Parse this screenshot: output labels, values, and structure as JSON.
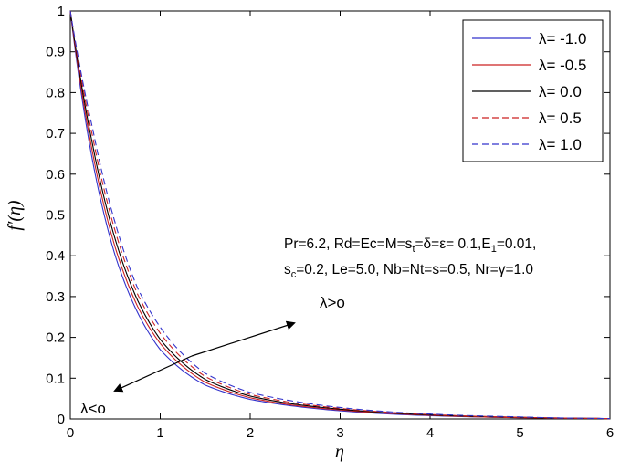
{
  "chart_data": {
    "type": "line",
    "xlabel": "η",
    "ylabel": "f′(η)",
    "xlim": [
      0,
      6
    ],
    "ylim": [
      0,
      1
    ],
    "x_ticks": [
      "0",
      "1",
      "2",
      "3",
      "4",
      "5",
      "6"
    ],
    "y_ticks": [
      "0",
      "0.1",
      "0.2",
      "0.3",
      "0.4",
      "0.5",
      "0.6",
      "0.7",
      "0.8",
      "0.9",
      "1"
    ],
    "grid": false,
    "legend_position": "top-right",
    "series": [
      {
        "name": "λ= -1.0",
        "color": "#3333cc",
        "dash": "solid",
        "x": [
          0,
          0.25,
          0.5,
          0.75,
          1,
          1.5,
          2,
          2.5,
          3,
          4,
          5,
          6
        ],
        "y": [
          1,
          0.63,
          0.4,
          0.26,
          0.17,
          0.083,
          0.048,
          0.031,
          0.02,
          0.008,
          0.003,
          0.001
        ]
      },
      {
        "name": "λ= -0.5",
        "color": "#cc2222",
        "dash": "solid",
        "x": [
          0,
          0.25,
          0.5,
          0.75,
          1,
          1.5,
          2,
          2.5,
          3,
          4,
          5,
          6
        ],
        "y": [
          1,
          0.65,
          0.42,
          0.275,
          0.185,
          0.09,
          0.052,
          0.033,
          0.022,
          0.009,
          0.003,
          0.001
        ]
      },
      {
        "name": "λ= 0.0",
        "color": "#000000",
        "dash": "solid",
        "x": [
          0,
          0.25,
          0.5,
          0.75,
          1,
          1.5,
          2,
          2.5,
          3,
          4,
          5,
          6
        ],
        "y": [
          1,
          0.67,
          0.44,
          0.29,
          0.195,
          0.097,
          0.056,
          0.036,
          0.024,
          0.01,
          0.004,
          0.001
        ]
      },
      {
        "name": "λ= 0.5",
        "color": "#cc2222",
        "dash": "dashed",
        "x": [
          0,
          0.25,
          0.5,
          0.75,
          1,
          1.5,
          2,
          2.5,
          3,
          4,
          5,
          6
        ],
        "y": [
          1,
          0.69,
          0.46,
          0.305,
          0.21,
          0.104,
          0.06,
          0.039,
          0.026,
          0.011,
          0.004,
          0.001
        ]
      },
      {
        "name": "λ= 1.0",
        "color": "#3333cc",
        "dash": "dashed",
        "x": [
          0,
          0.25,
          0.5,
          0.75,
          1,
          1.5,
          2,
          2.5,
          3,
          4,
          5,
          6
        ],
        "y": [
          1,
          0.71,
          0.48,
          0.32,
          0.225,
          0.112,
          0.065,
          0.043,
          0.028,
          0.012,
          0.005,
          0.001
        ]
      }
    ],
    "annotations": [
      {
        "text": "λ>o"
      },
      {
        "text": "λ<o"
      }
    ],
    "parameters_text": {
      "line1": {
        "a": "Pr=6.2, Rd=Ec=M=s",
        "a_sub": "t",
        "b": "=δ=ε= 0.1,E",
        "b_sub": "1",
        "c": "=0.01,"
      },
      "line2": {
        "a": "s",
        "a_sub": "c",
        "b": "=0.2, Le=5.0, Nb=Nt=s=0.5, Nr=γ=1.0"
      }
    }
  }
}
